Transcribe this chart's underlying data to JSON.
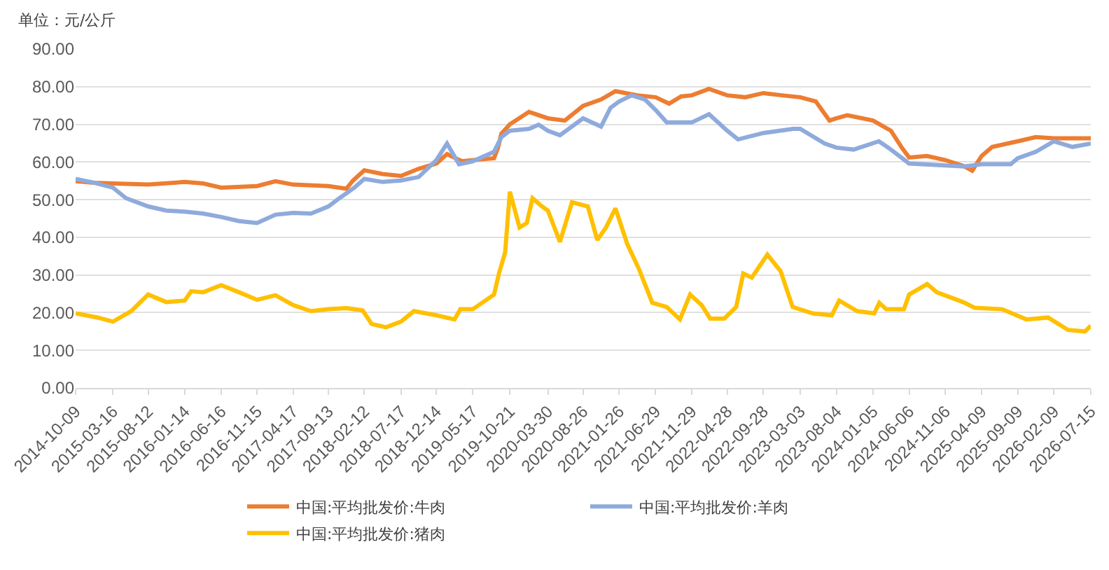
{
  "chart_data": {
    "type": "line",
    "ylabel": "单位：元/公斤",
    "xlim": [
      "2014-10-09",
      "2026-07-15"
    ],
    "ylim": [
      0,
      90
    ],
    "xticks": [
      "2014-10-09",
      "2015-03-16",
      "2015-08-12",
      "2016-01-14",
      "2016-06-16",
      "2016-11-15",
      "2017-04-17",
      "2017-09-13",
      "2018-02-12",
      "2018-07-17",
      "2018-12-14",
      "2019-05-17",
      "2019-10-21",
      "2020-03-30",
      "2020-08-26",
      "2021-01-26",
      "2021-06-29",
      "2021-11-29",
      "2022-04-28",
      "2022-09-28",
      "2023-03-03",
      "2023-08-04",
      "2024-01-05",
      "2024-06-06",
      "2024-11-06",
      "2025-04-09",
      "2025-09-09",
      "2026-02-09",
      "2026-07-15"
    ],
    "yticks": [
      {
        "value": 0,
        "label": "0.00"
      },
      {
        "value": 10,
        "label": "10.00"
      },
      {
        "value": 20,
        "label": "20.00"
      },
      {
        "value": 30,
        "label": "30.00"
      },
      {
        "value": 40,
        "label": "40.00"
      },
      {
        "value": 50,
        "label": "50.00"
      },
      {
        "value": 60,
        "label": "60.00"
      },
      {
        "value": 70,
        "label": "70.00"
      },
      {
        "value": 80,
        "label": "80.00"
      },
      {
        "value": 90,
        "label": "90.00"
      }
    ],
    "grid": "y",
    "legend": "bottom",
    "line_style": "solid",
    "series": [
      {
        "name": "中国:平均批发价:牛肉",
        "color": "#ed7d31",
        "x": [
          "2014-10-09",
          "2014-12-25",
          "2015-03-16",
          "2015-08-12",
          "2016-01-14",
          "2016-04-01",
          "2016-06-16",
          "2016-11-15",
          "2017-02-01",
          "2017-04-17",
          "2017-09-13",
          "2017-11-28",
          "2017-12-25",
          "2018-02-12",
          "2018-04-30",
          "2018-07-17",
          "2018-09-30",
          "2018-12-14",
          "2019-01-28",
          "2019-04-01",
          "2019-05-17",
          "2019-08-15",
          "2019-09-01",
          "2019-09-15",
          "2019-10-21",
          "2020-01-10",
          "2020-03-30",
          "2020-06-10",
          "2020-08-26",
          "2020-11-10",
          "2021-01-10",
          "2021-04-13",
          "2021-06-29",
          "2021-08-25",
          "2021-10-15",
          "2021-11-29",
          "2022-02-10",
          "2022-04-28",
          "2022-07-13",
          "2022-09-28",
          "2022-12-15",
          "2023-03-03",
          "2023-05-08",
          "2023-07-05",
          "2023-08-04",
          "2023-09-18",
          "2024-01-05",
          "2024-03-21",
          "2024-05-06",
          "2024-06-06",
          "2024-08-21",
          "2024-11-06",
          "2025-01-20",
          "2025-02-28",
          "2025-04-09",
          "2025-05-24",
          "2025-09-09",
          "2025-11-24",
          "2026-02-09",
          "2026-07-15"
        ],
        "values": [
          54.9,
          54.5,
          54.3,
          54.0,
          54.7,
          54.3,
          53.2,
          53.6,
          54.9,
          54.0,
          53.6,
          52.9,
          55.0,
          57.8,
          56.8,
          56.3,
          58.2,
          59.6,
          62.1,
          60.2,
          60.5,
          61.0,
          63.8,
          67.5,
          70.0,
          73.3,
          71.6,
          71.0,
          74.9,
          76.6,
          78.8,
          77.7,
          77.2,
          75.5,
          77.4,
          77.7,
          79.4,
          77.7,
          77.2,
          78.3,
          77.7,
          77.2,
          76.1,
          71.0,
          71.6,
          72.4,
          71.0,
          68.3,
          63.8,
          61.2,
          61.6,
          60.5,
          59.0,
          57.7,
          61.6,
          64.0,
          65.5,
          66.6,
          66.3,
          66.3
        ]
      },
      {
        "name": "中国:平均批发价:羊肉",
        "color": "#8faadc",
        "x": [
          "2014-10-09",
          "2014-12-25",
          "2015-03-16",
          "2015-05-10",
          "2015-08-12",
          "2015-10-28",
          "2016-01-14",
          "2016-04-01",
          "2016-06-16",
          "2016-08-31",
          "2016-11-15",
          "2017-02-01",
          "2017-04-17",
          "2017-07-01",
          "2017-09-13",
          "2017-10-30",
          "2018-01-01",
          "2018-02-12",
          "2018-04-30",
          "2018-07-17",
          "2018-09-30",
          "2018-12-14",
          "2019-01-28",
          "2019-03-20",
          "2019-05-17",
          "2019-08-15",
          "2019-09-15",
          "2019-10-21",
          "2020-01-10",
          "2020-02-20",
          "2020-03-30",
          "2020-05-20",
          "2020-08-26",
          "2020-11-10",
          "2020-12-20",
          "2021-01-26",
          "2021-03-20",
          "2021-05-15",
          "2021-06-29",
          "2021-08-15",
          "2021-11-29",
          "2022-02-10",
          "2022-04-28",
          "2022-06-13",
          "2022-09-28",
          "2023-02-01",
          "2023-03-03",
          "2023-06-15",
          "2023-08-04",
          "2023-10-15",
          "2024-01-30",
          "2024-03-21",
          "2024-06-06",
          "2024-11-06",
          "2025-01-25",
          "2025-04-09",
          "2025-08-10",
          "2025-09-09",
          "2025-11-24",
          "2026-02-09",
          "2026-04-28",
          "2026-07-15"
        ],
        "values": [
          55.5,
          54.5,
          53.2,
          50.4,
          48.2,
          47.1,
          46.8,
          46.3,
          45.4,
          44.3,
          43.8,
          46.0,
          46.5,
          46.3,
          48.2,
          50.4,
          53.2,
          55.5,
          54.7,
          55.1,
          56.0,
          60.5,
          64.9,
          59.4,
          60.2,
          62.7,
          66.6,
          68.3,
          68.8,
          69.9,
          68.3,
          67.1,
          71.6,
          69.4,
          74.4,
          76.1,
          77.7,
          76.6,
          73.8,
          70.5,
          70.5,
          72.7,
          68.3,
          66.0,
          67.7,
          68.8,
          68.8,
          64.9,
          63.8,
          63.3,
          65.5,
          63.3,
          59.6,
          59.1,
          58.8,
          59.4,
          59.4,
          61.0,
          62.7,
          65.5,
          64.0,
          64.9
        ]
      },
      {
        "name": "中国:平均批发价:猪肉",
        "color": "#ffc000",
        "x": [
          "2014-10-09",
          "2015-01-10",
          "2015-03-16",
          "2015-06-01",
          "2015-08-12",
          "2015-10-28",
          "2016-01-14",
          "2016-02-10",
          "2016-04-01",
          "2016-06-16",
          "2016-08-31",
          "2016-11-15",
          "2017-02-01",
          "2017-04-17",
          "2017-07-01",
          "2017-09-13",
          "2017-11-28",
          "2018-02-05",
          "2018-03-15",
          "2018-05-15",
          "2018-07-17",
          "2018-09-10",
          "2018-12-14",
          "2019-03-01",
          "2019-03-25",
          "2019-05-17",
          "2019-08-15",
          "2019-09-05",
          "2019-10-01",
          "2019-10-21",
          "2019-12-01",
          "2020-01-01",
          "2020-01-25",
          "2020-03-05",
          "2020-03-30",
          "2020-05-20",
          "2020-07-10",
          "2020-09-15",
          "2020-10-25",
          "2020-12-01",
          "2021-01-10",
          "2021-03-01",
          "2021-04-20",
          "2021-06-15",
          "2021-08-15",
          "2021-10-10",
          "2021-11-22",
          "2022-01-10",
          "2022-02-15",
          "2022-04-15",
          "2022-06-05",
          "2022-07-05",
          "2022-08-10",
          "2022-10-15",
          "2022-12-10",
          "2023-01-30",
          "2023-04-25",
          "2023-07-15",
          "2023-08-15",
          "2023-10-30",
          "2024-01-10",
          "2024-02-01",
          "2024-03-01",
          "2024-05-15",
          "2024-06-06",
          "2024-08-21",
          "2024-10-01",
          "2025-01-20",
          "2025-03-10",
          "2025-07-05",
          "2025-10-15",
          "2026-01-15",
          "2026-04-10",
          "2026-06-20",
          "2026-07-15"
        ],
        "values": [
          19.8,
          18.7,
          17.6,
          20.4,
          24.8,
          22.8,
          23.2,
          25.7,
          25.4,
          27.3,
          25.4,
          23.4,
          24.6,
          22.0,
          20.4,
          20.9,
          21.2,
          20.6,
          17.0,
          16.1,
          17.6,
          20.4,
          19.3,
          18.2,
          20.9,
          20.9,
          24.8,
          30.4,
          36.0,
          52.1,
          42.6,
          43.8,
          50.4,
          48.2,
          47.1,
          38.8,
          49.3,
          48.2,
          39.3,
          42.6,
          47.7,
          38.2,
          31.5,
          22.6,
          21.5,
          18.2,
          24.8,
          22.0,
          18.4,
          18.4,
          21.5,
          30.4,
          29.3,
          35.4,
          31.0,
          21.5,
          19.8,
          19.3,
          23.2,
          20.4,
          19.8,
          22.6,
          20.9,
          20.9,
          24.8,
          27.6,
          25.4,
          22.8,
          21.3,
          20.9,
          18.2,
          18.7,
          15.4,
          15.0,
          16.5
        ]
      }
    ]
  }
}
